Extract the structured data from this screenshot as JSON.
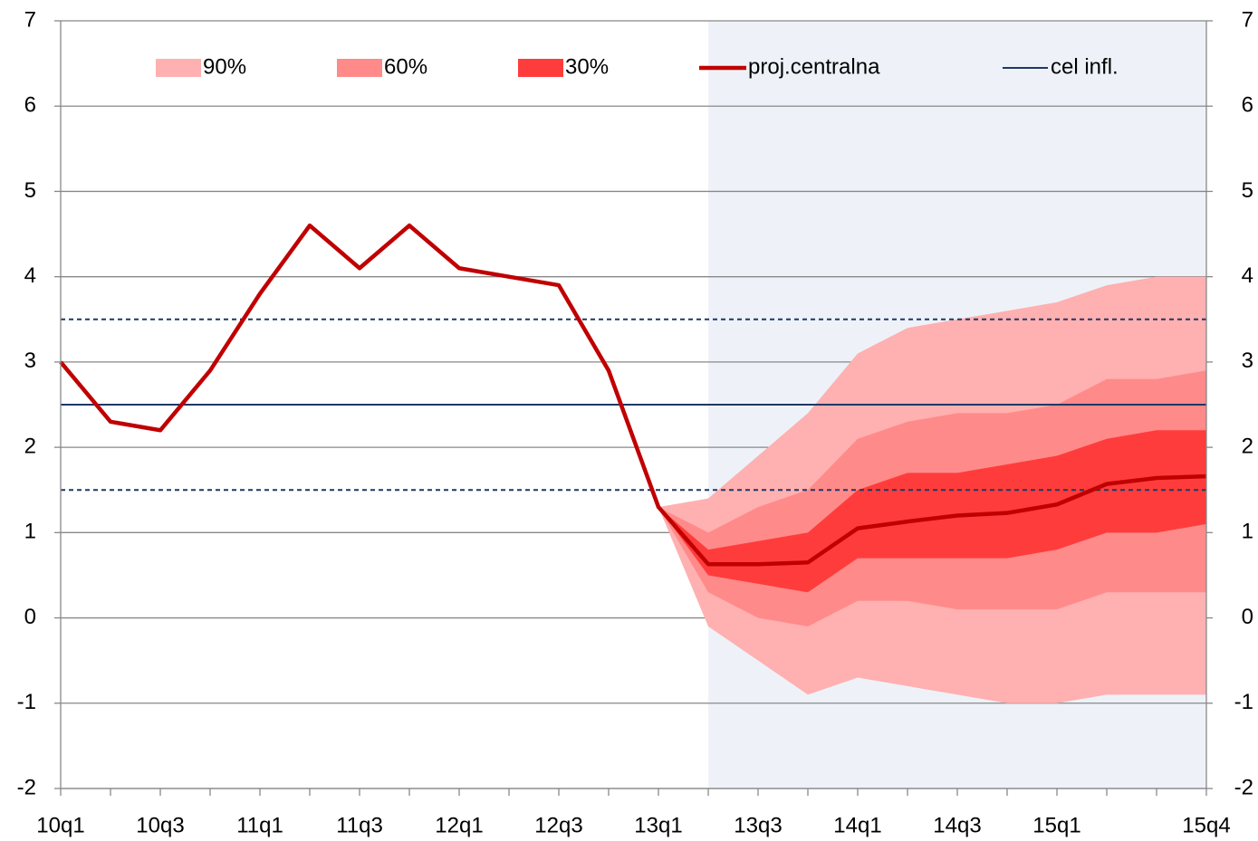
{
  "chart_data": {
    "type": "fan",
    "categories": [
      "10q1",
      null,
      "10q3",
      null,
      "11q1",
      null,
      "11q3",
      null,
      "12q1",
      null,
      "12q3",
      null,
      "13q1",
      null,
      "13q3",
      null,
      "14q1",
      null,
      "14q3",
      null,
      "15q1",
      null,
      null,
      "15q4"
    ],
    "ylim": [
      -2,
      7
    ],
    "yticks": [
      -2,
      -1,
      0,
      1,
      2,
      3,
      4,
      5,
      6,
      7
    ],
    "y2lim": [
      -2,
      7
    ],
    "y2ticks": [
      -2,
      -1,
      0,
      1,
      2,
      3,
      4,
      5,
      6,
      7
    ],
    "grid": true,
    "legend": "top",
    "fans": [
      {
        "name": "90%",
        "color": "#ffb0b0",
        "high": [
          null,
          null,
          null,
          null,
          null,
          null,
          null,
          null,
          null,
          null,
          null,
          null,
          1.3,
          1.4,
          1.9,
          2.4,
          3.1,
          3.4,
          3.5,
          3.6,
          3.7,
          3.9,
          4.0,
          4.0
        ],
        "low": [
          null,
          null,
          null,
          null,
          null,
          null,
          null,
          null,
          null,
          null,
          null,
          null,
          1.3,
          -0.1,
          -0.5,
          -0.9,
          -0.7,
          -0.8,
          -0.9,
          -1.0,
          -1.0,
          -0.9,
          -0.9,
          -0.9
        ]
      },
      {
        "name": "60%",
        "color": "#ff8a8a",
        "high": [
          null,
          null,
          null,
          null,
          null,
          null,
          null,
          null,
          null,
          null,
          null,
          null,
          1.3,
          1.0,
          1.3,
          1.5,
          2.1,
          2.3,
          2.4,
          2.4,
          2.5,
          2.8,
          2.8,
          2.9
        ],
        "low": [
          null,
          null,
          null,
          null,
          null,
          null,
          null,
          null,
          null,
          null,
          null,
          null,
          1.3,
          0.3,
          0.0,
          -0.1,
          0.2,
          0.2,
          0.1,
          0.1,
          0.1,
          0.3,
          0.3,
          0.3
        ]
      },
      {
        "name": "30%",
        "color": "#ff3c3c",
        "high": [
          null,
          null,
          null,
          null,
          null,
          null,
          null,
          null,
          null,
          null,
          null,
          null,
          1.3,
          0.8,
          0.9,
          1.0,
          1.5,
          1.7,
          1.7,
          1.8,
          1.9,
          2.1,
          2.2,
          2.2
        ],
        "low": [
          null,
          null,
          null,
          null,
          null,
          null,
          null,
          null,
          null,
          null,
          null,
          null,
          1.3,
          0.5,
          0.4,
          0.3,
          0.7,
          0.7,
          0.7,
          0.7,
          0.8,
          1.0,
          1.0,
          1.1
        ]
      }
    ],
    "series": [
      {
        "name": "proj.centralna",
        "color": "#c00000",
        "values": [
          3.0,
          2.3,
          2.2,
          2.9,
          3.8,
          4.6,
          4.1,
          4.6,
          4.1,
          4.0,
          3.9,
          2.9,
          1.3,
          0.63,
          0.63,
          0.65,
          1.05,
          1.13,
          1.2,
          1.23,
          1.33,
          1.57,
          1.64,
          1.66
        ]
      }
    ],
    "target": {
      "name": "cel infl.",
      "color": "#1f3864",
      "value": 2.5,
      "band": [
        1.5,
        3.5
      ]
    }
  }
}
